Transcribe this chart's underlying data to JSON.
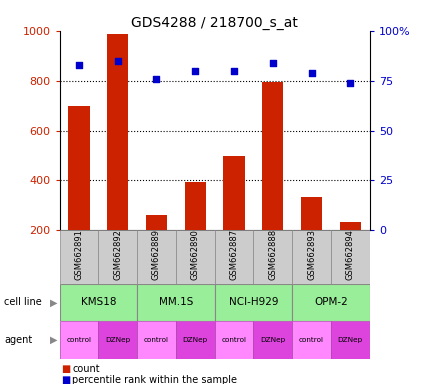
{
  "title": "GDS4288 / 218700_s_at",
  "samples": [
    "GSM662891",
    "GSM662892",
    "GSM662889",
    "GSM662890",
    "GSM662887",
    "GSM662888",
    "GSM662893",
    "GSM662894"
  ],
  "counts": [
    700,
    985,
    260,
    395,
    500,
    795,
    335,
    235
  ],
  "percentiles": [
    83,
    85,
    76,
    80,
    80,
    84,
    79,
    74
  ],
  "ylim_left": [
    200,
    1000
  ],
  "ylim_right": [
    0,
    100
  ],
  "yticks_left": [
    200,
    400,
    600,
    800,
    1000
  ],
  "yticks_right": [
    0,
    25,
    50,
    75,
    100
  ],
  "bar_color": "#cc2200",
  "dot_color": "#0000cc",
  "cell_lines": [
    "KMS18",
    "MM.1S",
    "NCI-H929",
    "OPM-2"
  ],
  "cell_line_color": "#99ee99",
  "cell_line_border": "#888888",
  "agent_control_color": "#ff88ff",
  "agent_dznep_color": "#dd44dd",
  "agent_labels": [
    "control",
    "DZNep",
    "control",
    "DZNep",
    "control",
    "DZNep",
    "control",
    "DZNep"
  ],
  "sample_bg_color": "#cccccc",
  "sample_border_color": "#888888",
  "background_color": "#ffffff",
  "left_tick_color": "#cc2200",
  "right_tick_color": "#0000cc",
  "grid_color": "#000000",
  "dotgrid_ticks": [
    400,
    600,
    800
  ],
  "cell_groups": [
    [
      0,
      2,
      "KMS18"
    ],
    [
      2,
      4,
      "MM.1S"
    ],
    [
      4,
      6,
      "NCI-H929"
    ],
    [
      6,
      8,
      "OPM-2"
    ]
  ],
  "agent_colors": [
    "#ff88ff",
    "#dd44dd",
    "#ff88ff",
    "#dd44dd",
    "#ff88ff",
    "#dd44dd",
    "#ff88ff",
    "#dd44dd"
  ]
}
